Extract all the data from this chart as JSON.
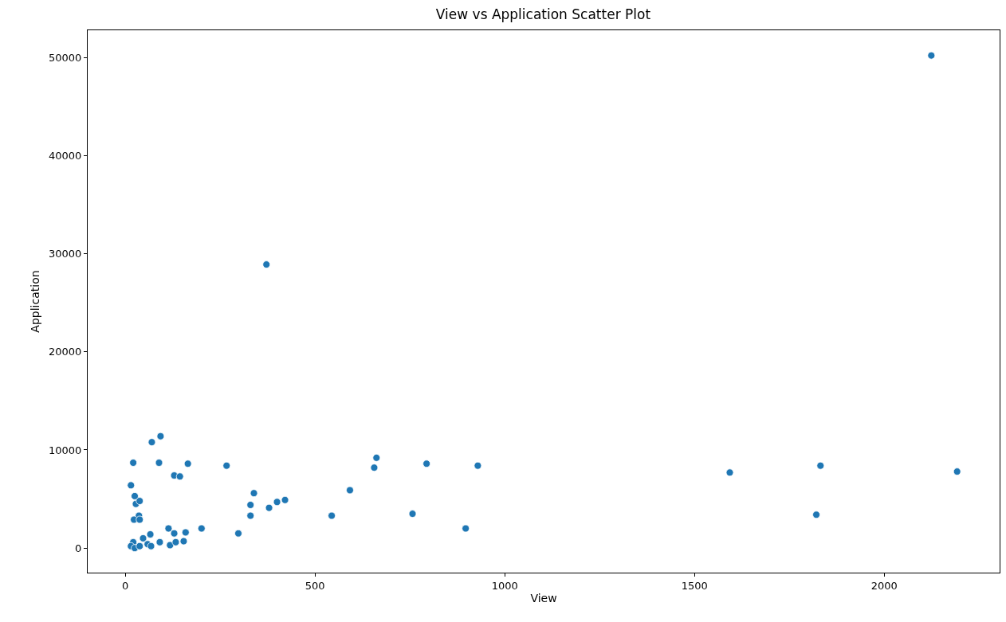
{
  "chart_data": {
    "type": "scatter",
    "title": "View vs Application Scatter Plot",
    "xlabel": "View",
    "ylabel": "Application",
    "xlim": [
      -99,
      2304
    ],
    "ylim": [
      -2500,
      52770
    ],
    "xticks": [
      0,
      500,
      1000,
      1500,
      2000
    ],
    "yticks": [
      0,
      10000,
      20000,
      30000,
      40000,
      50000
    ],
    "series": [
      {
        "color": "#1f77b4",
        "x": [
          2124,
          372,
          2192,
          1832,
          1821,
          1593,
          929,
          794,
          662,
          656,
          592,
          757,
          897,
          544,
          421,
          400,
          379,
          339,
          330,
          330,
          298,
          267,
          201,
          93,
          70,
          21,
          89,
          165,
          129,
          144,
          15,
          25,
          28,
          38,
          36,
          23,
          38,
          114,
          129,
          159,
          66,
          47,
          154,
          118,
          21,
          15,
          25,
          38,
          59,
          91,
          133,
          68
        ],
        "values": [
          50200,
          28900,
          7800,
          8400,
          3400,
          7700,
          8400,
          8600,
          9200,
          8200,
          5900,
          3500,
          2000,
          3300,
          4900,
          4700,
          4100,
          5600,
          4400,
          3300,
          1500,
          8400,
          2000,
          11400,
          10800,
          8700,
          8700,
          8600,
          7400,
          7300,
          6400,
          5300,
          4500,
          4800,
          3300,
          2900,
          2900,
          2000,
          1500,
          1600,
          1400,
          1000,
          700,
          300,
          600,
          200,
          0,
          200,
          400,
          600,
          600,
          200
        ]
      }
    ]
  }
}
